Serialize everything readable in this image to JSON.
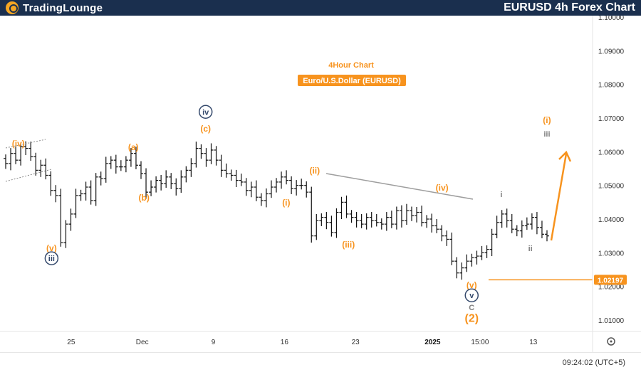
{
  "header": {
    "logo": "TradingLounge",
    "title": "EURUSD 4h Forex Chart"
  },
  "chart_data": {
    "type": "candlestick",
    "title": "4Hour Chart",
    "subtitle": "Euro/U.S.Dollar (EURUSD)",
    "ylim": [
      1.0,
      1.1
    ],
    "y_ticks": [
      1.01,
      1.02,
      1.03,
      1.04,
      1.05,
      1.06,
      1.07,
      1.08,
      1.09,
      1.1
    ],
    "y_tick_labels": [
      "1.01000",
      "1.02000",
      "1.03000",
      "1.04000",
      "1.05000",
      "1.06000",
      "1.07000",
      "1.08000",
      "1.09000",
      "1.10000"
    ],
    "x_ticks": [
      {
        "label": "25",
        "x": 14
      },
      {
        "label": "Dec",
        "x": 26
      },
      {
        "label": "9",
        "x": 38
      },
      {
        "label": "16",
        "x": 50
      },
      {
        "label": "23",
        "x": 62
      },
      {
        "label": "2025",
        "x": 75
      },
      {
        "label": "15:00",
        "x": 83
      },
      {
        "label": "13",
        "x": 92
      }
    ],
    "x_range": [
      2,
      102
    ],
    "current_price": 1.02197,
    "current_price_label": "1.02197",
    "series": [
      {
        "values": [
          1.0565,
          1.0595,
          1.0575,
          1.0615,
          1.061,
          1.0585,
          1.0545,
          1.056,
          1.053,
          1.0485,
          1.047,
          1.033,
          1.0385,
          1.0415,
          1.047,
          1.0475,
          1.0495,
          1.0455,
          1.0525,
          1.052,
          1.0565,
          1.0575,
          1.0555,
          1.0555,
          1.0575,
          1.0595,
          1.056,
          1.0535,
          1.048,
          1.0495,
          1.0515,
          1.0505,
          1.0525,
          1.0505,
          1.049,
          1.0525,
          1.0545,
          1.0565,
          1.061,
          1.0595,
          1.0575,
          1.0605,
          1.0575,
          1.0545,
          1.0535,
          1.053,
          1.0515,
          1.051,
          1.0485,
          1.0495,
          1.0465,
          1.0455,
          1.0475,
          1.0495,
          1.051,
          1.0525,
          1.0515,
          1.049,
          1.05,
          1.05,
          1.048,
          1.035,
          1.0395,
          1.0405,
          1.039,
          1.036,
          1.042,
          1.045,
          1.0415,
          1.0405,
          1.0395,
          1.0385,
          1.0405,
          1.0395,
          1.039,
          1.0385,
          1.0405,
          1.0385,
          1.0425,
          1.0395,
          1.0425,
          1.041,
          1.042,
          1.039,
          1.04,
          1.038,
          1.037,
          1.035,
          1.034,
          1.0275,
          1.024,
          1.0255,
          1.0275,
          1.0285,
          1.029,
          1.03,
          1.031,
          1.0355,
          1.039,
          1.0415,
          1.0395,
          1.037,
          1.0365,
          1.038,
          1.0385,
          1.0405,
          1.0375,
          1.0355,
          1.035
        ]
      }
    ],
    "wave_labels": [
      {
        "text": "(iv)",
        "x": 5.1,
        "y": 1.0615,
        "style": "orange"
      },
      {
        "text": "(v)",
        "x": 10.7,
        "y": 1.0305,
        "style": "orange"
      },
      {
        "text": "iii",
        "x": 10.7,
        "y": 1.0275,
        "style": "circle-navy"
      },
      {
        "text": "(a)",
        "x": 24.5,
        "y": 1.0605,
        "style": "orange"
      },
      {
        "text": "(b)",
        "x": 26.3,
        "y": 1.0455,
        "style": "orange"
      },
      {
        "text": "iv",
        "x": 36.7,
        "y": 1.071,
        "style": "circle-navy"
      },
      {
        "text": "(c)",
        "x": 36.7,
        "y": 1.066,
        "style": "orange"
      },
      {
        "text": "(ii)",
        "x": 55.1,
        "y": 1.0535,
        "style": "orange"
      },
      {
        "text": "(i)",
        "x": 50.3,
        "y": 1.044,
        "style": "orange"
      },
      {
        "text": "(iii)",
        "x": 60.8,
        "y": 1.0315,
        "style": "orange"
      },
      {
        "text": "(iv)",
        "x": 76.6,
        "y": 1.0485,
        "style": "orange"
      },
      {
        "text": "(v)",
        "x": 81.6,
        "y": 1.0195,
        "style": "orange"
      },
      {
        "text": "v",
        "x": 81.6,
        "y": 1.0165,
        "style": "circle-navy"
      },
      {
        "text": "C",
        "x": 81.6,
        "y": 1.013,
        "style": "gray"
      },
      {
        "text": "(2)",
        "x": 81.6,
        "y": 1.0095,
        "style": "orange-large"
      },
      {
        "text": "i",
        "x": 86.6,
        "y": 1.0465,
        "style": "gray"
      },
      {
        "text": "ii",
        "x": 91.5,
        "y": 1.0305,
        "style": "gray"
      },
      {
        "text": "(i)",
        "x": 94.3,
        "y": 1.0685,
        "style": "orange"
      },
      {
        "text": "iii",
        "x": 94.3,
        "y": 1.0645,
        "style": "gray"
      }
    ],
    "colors": {
      "orange": "#f7931e",
      "navy": "#34496c",
      "gray": "#808080",
      "candle": "#111111",
      "trendline": "#9e9e9e",
      "channel": "#8a8a8a"
    }
  },
  "footer": {
    "clock": "09:24:02 (UTC+5)"
  }
}
